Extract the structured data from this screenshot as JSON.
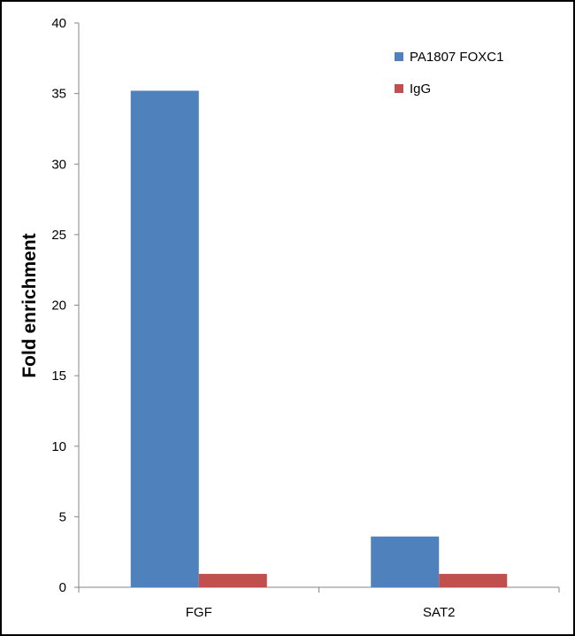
{
  "chart_data": {
    "type": "bar",
    "title": "",
    "xlabel": "",
    "ylabel": "Fold enrichment",
    "ylim": [
      0,
      40
    ],
    "yticks": [
      0,
      5,
      10,
      15,
      20,
      25,
      30,
      35,
      40
    ],
    "categories": [
      "FGF",
      "SAT2"
    ],
    "series": [
      {
        "name": "PA1807 FOXC1",
        "color": "#4f81bd",
        "values": [
          35.2,
          3.6
        ]
      },
      {
        "name": "IgG",
        "color": "#c0504d",
        "values": [
          0.95,
          0.95
        ]
      }
    ],
    "grid": false,
    "legend_position": "top-right"
  }
}
